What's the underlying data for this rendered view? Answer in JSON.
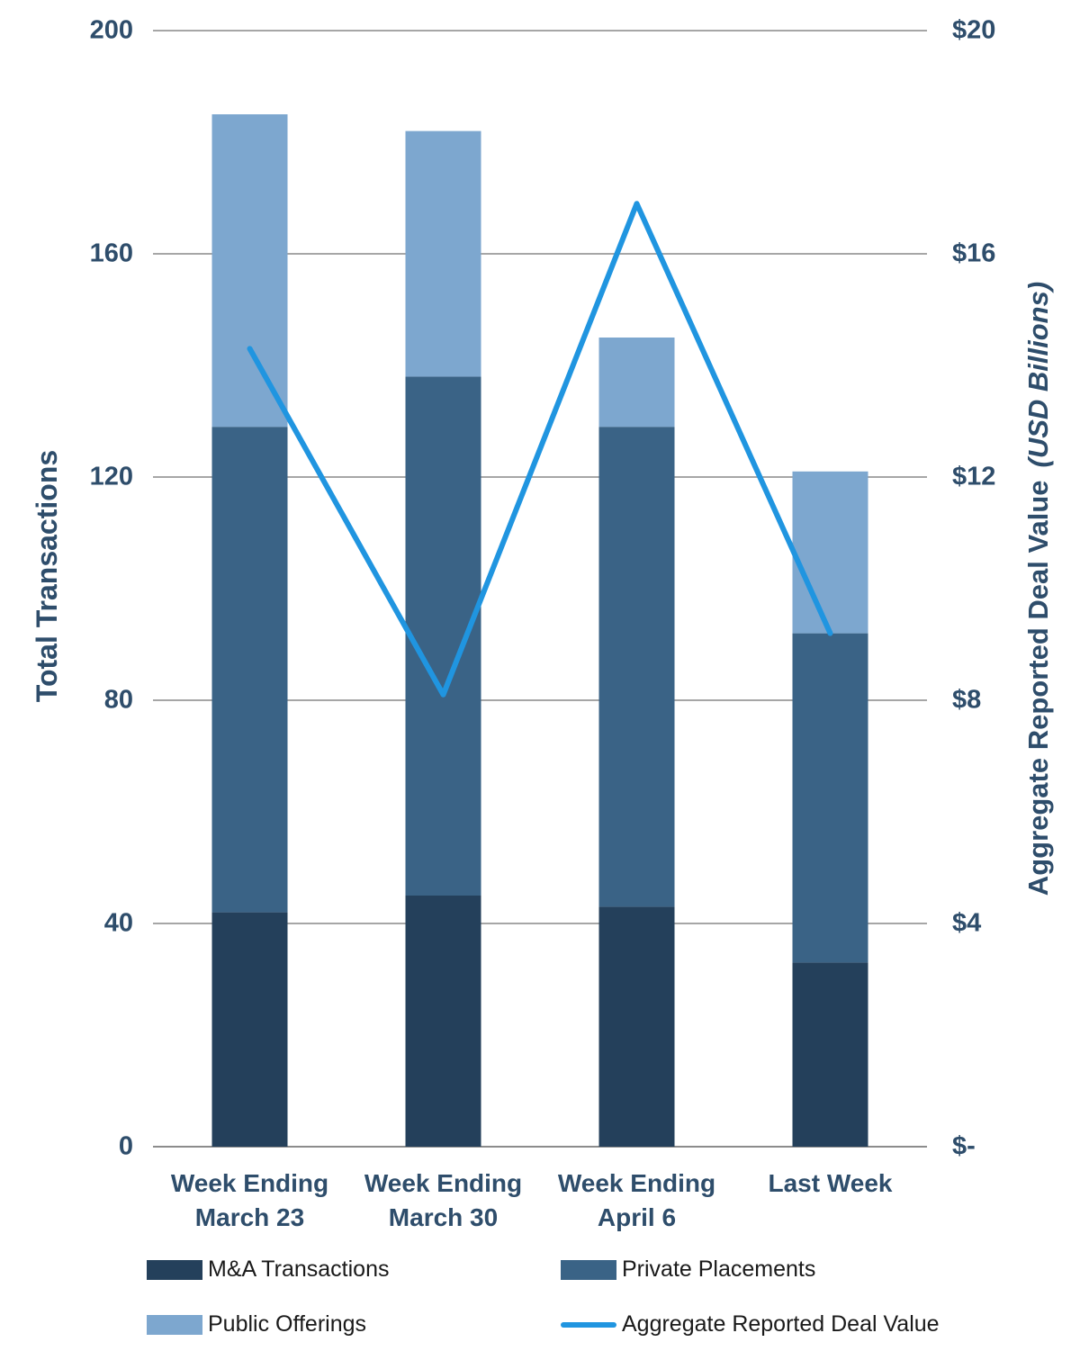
{
  "chart_data": {
    "type": "bar",
    "subtype": "stacked-bars-with-line-overlay",
    "categories": [
      "Week Ending March 23",
      "Week Ending March 30",
      "Week Ending April 6",
      "Last Week"
    ],
    "category_lines": [
      [
        "Week Ending",
        "March 23"
      ],
      [
        "Week Ending",
        "March 30"
      ],
      [
        "Week Ending",
        "April 6"
      ],
      [
        "Last Week"
      ]
    ],
    "series": [
      {
        "name": "M&A Transactions",
        "type": "bar",
        "axis": "left",
        "color": "#24405B",
        "values": [
          42,
          45,
          43,
          33
        ]
      },
      {
        "name": "Private Placements",
        "type": "bar",
        "axis": "left",
        "color": "#3A6386",
        "values": [
          87,
          93,
          86,
          59
        ]
      },
      {
        "name": "Public Offerings",
        "type": "bar",
        "axis": "left",
        "color": "#7DA7CF",
        "values": [
          56,
          44,
          16,
          29
        ]
      },
      {
        "name": "Aggregate Reported Deal Value",
        "type": "line",
        "axis": "right",
        "color": "#2095E0",
        "values": [
          14.3,
          8.1,
          16.9,
          9.2
        ]
      }
    ],
    "stacked_totals": [
      185,
      182,
      145,
      121
    ],
    "left_axis": {
      "label": "Total Transactions",
      "min": 0,
      "max": 200,
      "tick_step": 40,
      "tick_labels": [
        "0",
        "40",
        "80",
        "120",
        "160",
        "200"
      ]
    },
    "right_axis": {
      "label": "Aggregate Reported Deal Value",
      "label_italic": "(USD Billions)",
      "min": 0,
      "max": 20,
      "tick_step": 4,
      "tick_labels": [
        "$-",
        "$4",
        "$8",
        "$12",
        "$16",
        "$20"
      ]
    },
    "grid": true,
    "legend_position": "bottom",
    "colors": {
      "grid_line": "#A6A6A6",
      "axis_line": "#8C8C8C",
      "axis_text": "#2E4D6B",
      "legend_text": "#1A1A1A",
      "background": "#FFFFFF"
    }
  }
}
